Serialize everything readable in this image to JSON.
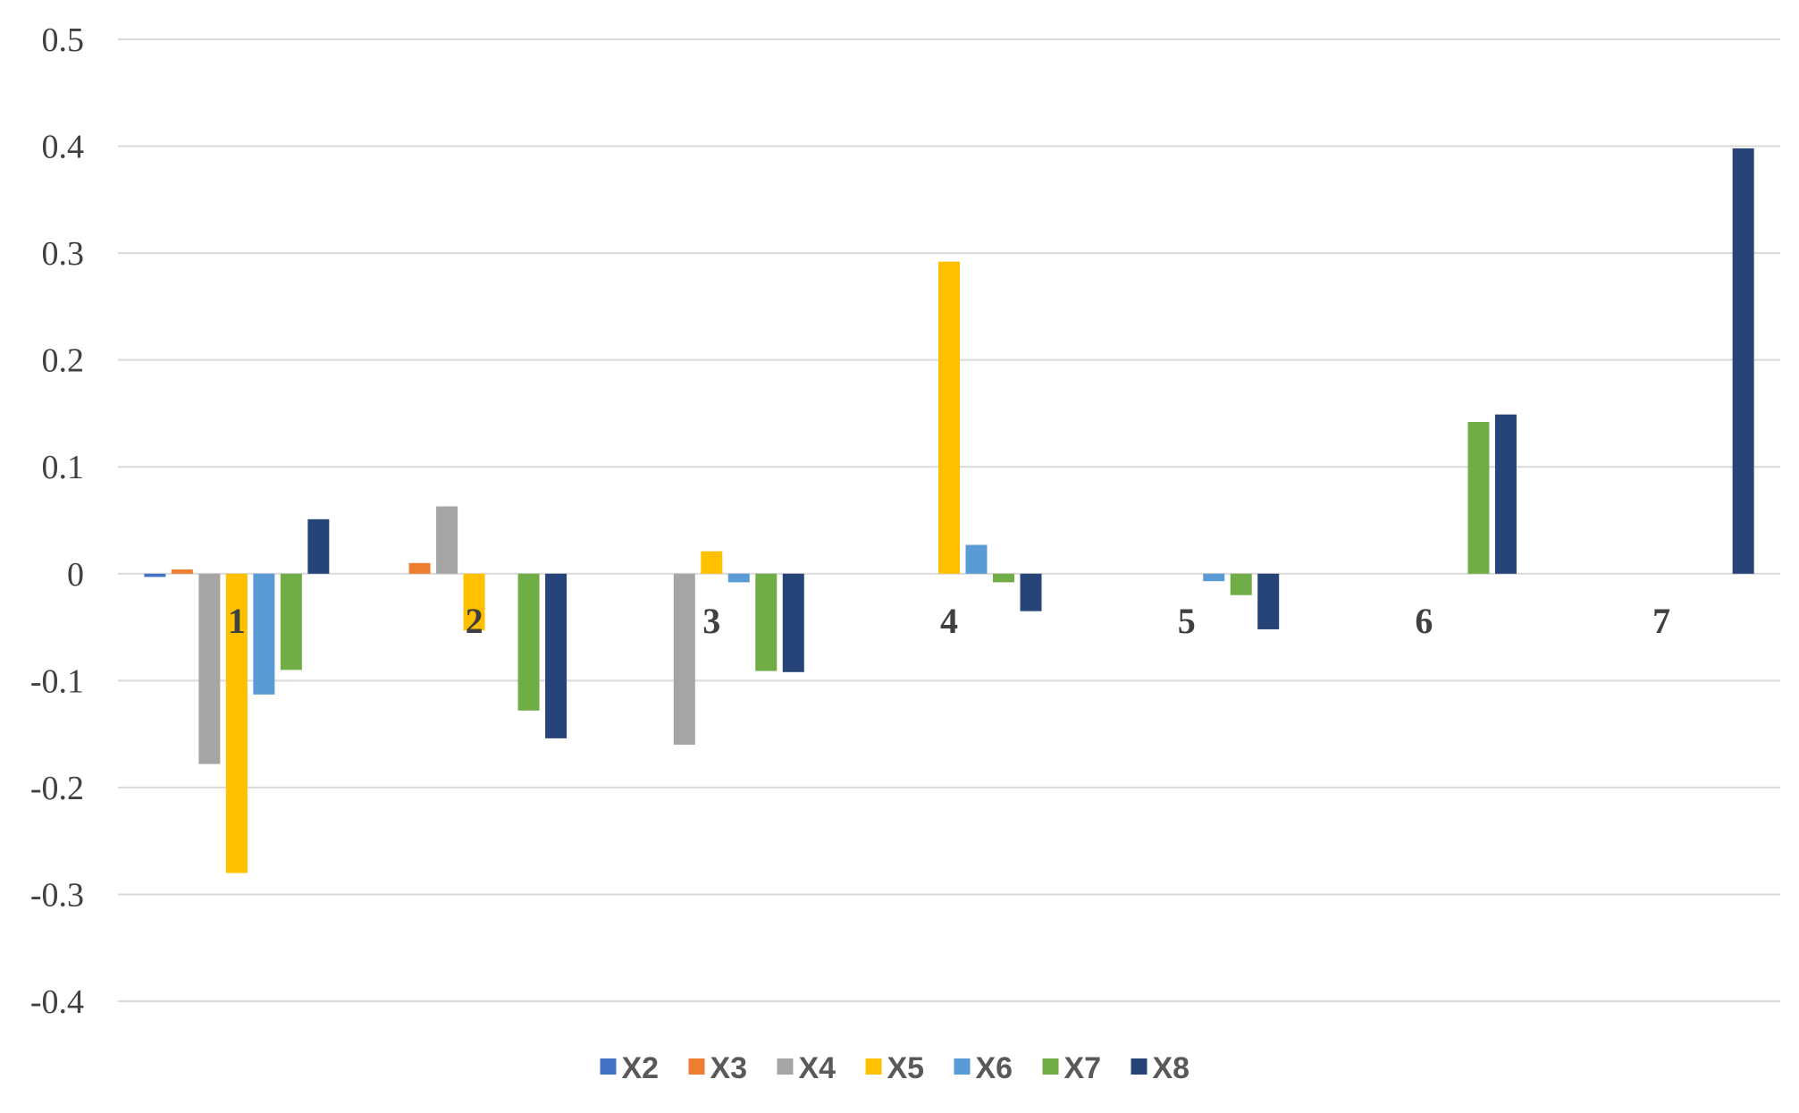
{
  "chart_data": {
    "type": "bar",
    "categories": [
      "1",
      "2",
      "3",
      "4",
      "5",
      "6",
      "7"
    ],
    "ylim": [
      -0.4,
      0.5
    ],
    "yticks": [
      "0.5",
      "0.4",
      "0.3",
      "0.2",
      "0.1",
      "0",
      "-0.1",
      "-0.2",
      "-0.3",
      "-0.4"
    ],
    "ytick_values": [
      0.5,
      0.4,
      0.3,
      0.2,
      0.1,
      0,
      -0.1,
      -0.2,
      -0.3,
      -0.4
    ],
    "grid": true,
    "legend_position": "bottom",
    "series": [
      {
        "name": "X2",
        "color": "#4472C4",
        "values": [
          -0.003,
          null,
          null,
          null,
          null,
          null,
          null
        ]
      },
      {
        "name": "X3",
        "color": "#ED7D31",
        "values": [
          0.004,
          0.01,
          null,
          null,
          null,
          null,
          null
        ]
      },
      {
        "name": "X4",
        "color": "#A5A5A5",
        "values": [
          -0.178,
          0.063,
          -0.16,
          null,
          null,
          null,
          null
        ]
      },
      {
        "name": "X5",
        "color": "#FFC000",
        "values": [
          -0.28,
          -0.053,
          0.021,
          0.292,
          null,
          null,
          null
        ]
      },
      {
        "name": "X6",
        "color": "#5B9BD5",
        "values": [
          -0.113,
          null,
          -0.008,
          0.027,
          -0.007,
          null,
          null
        ]
      },
      {
        "name": "X7",
        "color": "#70AD47",
        "values": [
          -0.09,
          -0.128,
          -0.091,
          -0.008,
          -0.02,
          0.142,
          null
        ]
      },
      {
        "name": "X8",
        "color": "#264478",
        "values": [
          0.051,
          -0.154,
          -0.092,
          -0.035,
          -0.052,
          0.149,
          0.398
        ]
      }
    ]
  }
}
